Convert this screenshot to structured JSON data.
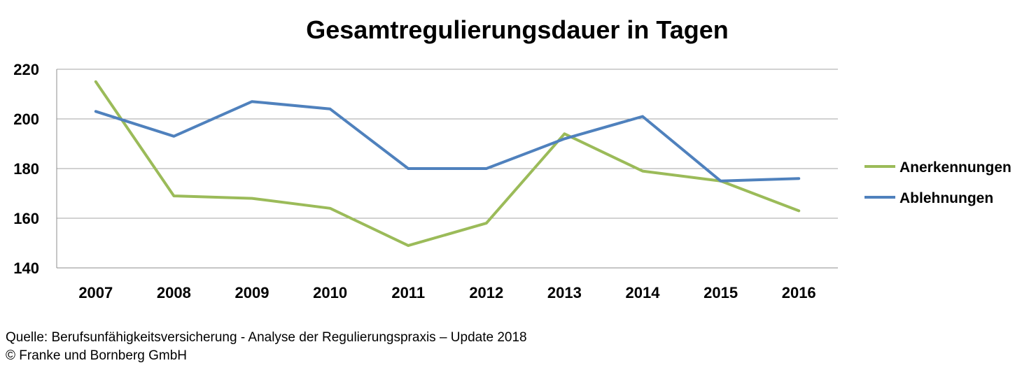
{
  "colors": {
    "green": "#9bbb59",
    "blue": "#4f81bd",
    "grid": "#a6a6a6",
    "axis": "#8c8c8c"
  },
  "chart_data": {
    "type": "line",
    "title": "Gesamtregulierungsdauer in Tagen",
    "xlabel": "",
    "ylabel": "",
    "categories": [
      "2007",
      "2008",
      "2009",
      "2010",
      "2011",
      "2012",
      "2013",
      "2014",
      "2015",
      "2016"
    ],
    "ylim": [
      140,
      220
    ],
    "yticks": [
      "140",
      "160",
      "180",
      "200",
      "220"
    ],
    "grid": true,
    "legend_position": "right",
    "series": [
      {
        "name": "Anerkennungen",
        "color": "#9bbb59",
        "values": [
          215,
          169,
          168,
          164,
          149,
          158,
          194,
          179,
          175,
          163
        ]
      },
      {
        "name": "Ablehnungen",
        "color": "#4f81bd",
        "values": [
          203,
          193,
          207,
          204,
          180,
          180,
          192,
          201,
          175,
          176
        ]
      }
    ]
  },
  "footer": {
    "source": "Quelle: Berufsunfähigkeitsversicherung - Analyse der Regulierungspraxis – Update 2018",
    "copyright": "© Franke und Bornberg GmbH"
  }
}
